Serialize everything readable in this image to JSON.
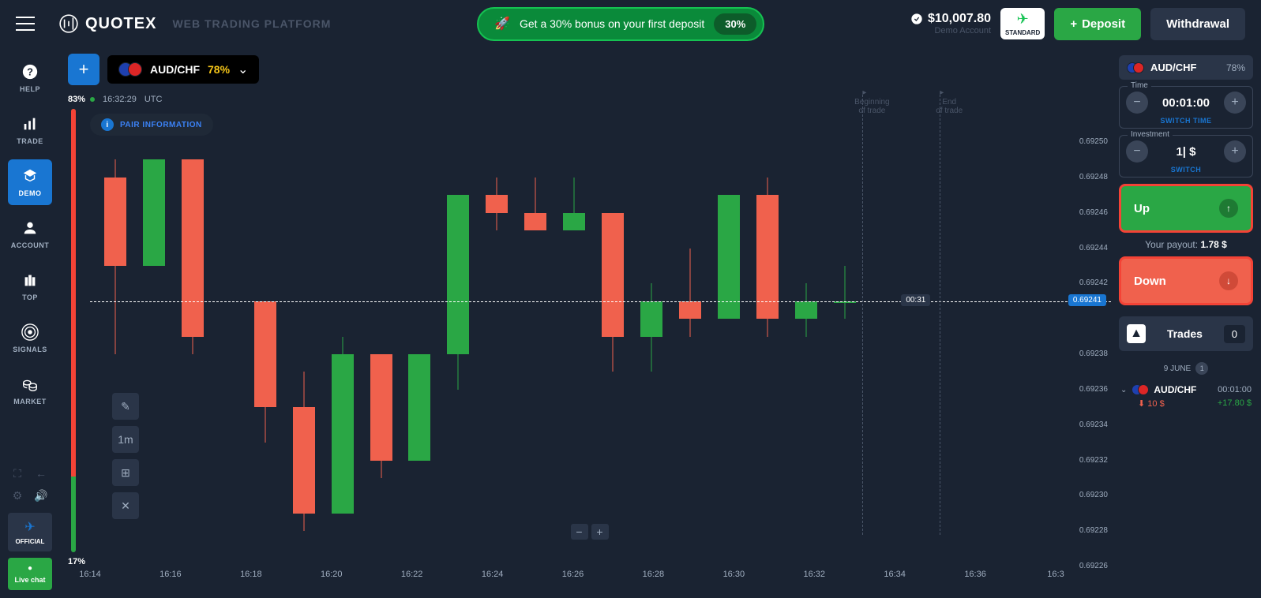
{
  "header": {
    "logo": "QUOTEX",
    "subtitle": "WEB TRADING PLATFORM",
    "promo_text": "Get a 30% bonus on your first deposit",
    "promo_badge": "30%",
    "balance": "$10,007.80",
    "balance_label": "Demo Account",
    "standard": "STANDARD",
    "deposit": "Deposit",
    "withdraw": "Withdrawal"
  },
  "sidebar": {
    "items": [
      {
        "label": "HELP",
        "icon": "?"
      },
      {
        "label": "TRADE",
        "icon": "bars"
      },
      {
        "label": "DEMO",
        "icon": "grad"
      },
      {
        "label": "ACCOUNT",
        "icon": "user"
      },
      {
        "label": "TOP",
        "icon": "bag"
      },
      {
        "label": "SIGNALS",
        "icon": "radar"
      },
      {
        "label": "MARKET",
        "icon": "coins"
      }
    ],
    "official": "OFFICIAL",
    "livechat": "Live chat"
  },
  "tab": {
    "pair": "AUD/CHF",
    "pct": "78%",
    "flag1": "#1e40af",
    "flag2": "#dc2626"
  },
  "chart": {
    "time": "16:32:29",
    "tz": "UTC",
    "pair_info": "PAIR INFORMATION",
    "sentiment_up": "83%",
    "sentiment_down": "17%",
    "beginning": "Beginning\nof trade",
    "end": "End\nof trade",
    "countdown": "00:31",
    "current_price": "0.69241",
    "timeframe": "1m",
    "y_min": 0.69226,
    "y_max": 0.6925,
    "price_line": 0.69241,
    "yticks": [
      0.6925,
      0.69248,
      0.69246,
      0.69244,
      0.69242,
      0.69238,
      0.69236,
      0.69234,
      0.69232,
      0.6923,
      0.69228,
      0.69226
    ],
    "xticks": [
      "16:14",
      "16:16",
      "16:18",
      "16:20",
      "16:22",
      "16:24",
      "16:26",
      "16:28",
      "16:30",
      "16:32",
      "16:34",
      "16:36",
      "16:3"
    ],
    "vlines": [
      {
        "x": 0.8,
        "label": "Beginning\nof trade"
      },
      {
        "x": 0.88,
        "label": "End\nof trade"
      }
    ],
    "up_color": "#2aa745",
    "down_color": "#f0614d",
    "candles": [
      {
        "x": 0.01,
        "o": 0.69248,
        "c": 0.69243,
        "h": 0.69249,
        "l": 0.69238
      },
      {
        "x": 0.05,
        "o": 0.69243,
        "c": 0.69249,
        "h": 0.69249,
        "l": 0.69243
      },
      {
        "x": 0.09,
        "o": 0.69249,
        "c": 0.69239,
        "h": 0.69249,
        "l": 0.69238
      },
      {
        "x": 0.165,
        "o": 0.69241,
        "c": 0.69235,
        "h": 0.69241,
        "l": 0.69233
      },
      {
        "x": 0.205,
        "o": 0.69235,
        "c": 0.69229,
        "h": 0.69237,
        "l": 0.69228
      },
      {
        "x": 0.245,
        "o": 0.69229,
        "c": 0.69238,
        "h": 0.69239,
        "l": 0.69229
      },
      {
        "x": 0.285,
        "o": 0.69238,
        "c": 0.69232,
        "h": 0.69238,
        "l": 0.69231
      },
      {
        "x": 0.325,
        "o": 0.69232,
        "c": 0.69238,
        "h": 0.69238,
        "l": 0.69232
      },
      {
        "x": 0.365,
        "o": 0.69238,
        "c": 0.69247,
        "h": 0.69247,
        "l": 0.69236
      },
      {
        "x": 0.405,
        "o": 0.69247,
        "c": 0.69246,
        "h": 0.69248,
        "l": 0.69245
      },
      {
        "x": 0.445,
        "o": 0.69246,
        "c": 0.69245,
        "h": 0.69248,
        "l": 0.69245
      },
      {
        "x": 0.485,
        "o": 0.69245,
        "c": 0.69246,
        "h": 0.69248,
        "l": 0.69245
      },
      {
        "x": 0.525,
        "o": 0.69246,
        "c": 0.69239,
        "h": 0.69246,
        "l": 0.69237
      },
      {
        "x": 0.565,
        "o": 0.69239,
        "c": 0.69241,
        "h": 0.69242,
        "l": 0.69237
      },
      {
        "x": 0.605,
        "o": 0.69241,
        "c": 0.6924,
        "h": 0.69244,
        "l": 0.69239
      },
      {
        "x": 0.645,
        "o": 0.6924,
        "c": 0.69247,
        "h": 0.69247,
        "l": 0.6924
      },
      {
        "x": 0.685,
        "o": 0.69247,
        "c": 0.6924,
        "h": 0.69248,
        "l": 0.69239
      },
      {
        "x": 0.725,
        "o": 0.6924,
        "c": 0.69241,
        "h": 0.69242,
        "l": 0.69239
      },
      {
        "x": 0.765,
        "o": 0.69241,
        "c": 0.69241,
        "h": 0.69243,
        "l": 0.6924
      }
    ]
  },
  "rpanel": {
    "pair": "AUD/CHF",
    "pct": "78%",
    "time_label": "Time",
    "time_value": "00:01:00",
    "switch_time": "SWITCH TIME",
    "inv_label": "Investment",
    "inv_value": "1| $",
    "switch": "SWITCH",
    "up": "Up",
    "down": "Down",
    "payout_label": "Your payout:",
    "payout_value": "1.78 $",
    "trades_title": "Trades",
    "trades_count": "0",
    "date": "9 JUNE",
    "date_badge": "1",
    "history": {
      "pair": "AUD/CHF",
      "time": "00:01:00",
      "amount": "10 $",
      "profit": "+17.80 $"
    }
  },
  "colors": {
    "bg": "#1a2332",
    "panel": "#2a3548",
    "blue": "#1976d2",
    "green": "#2aa745",
    "red": "#f0614d",
    "yellow": "#f5c518",
    "border_red": "#f44336"
  }
}
